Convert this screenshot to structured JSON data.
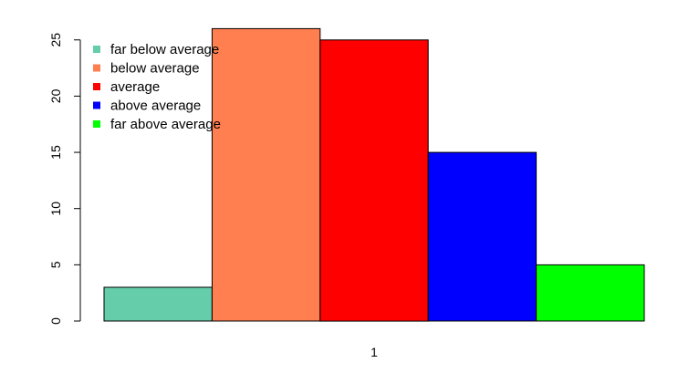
{
  "chart_data": {
    "type": "bar",
    "layout": "side-by-side bars in a single group",
    "group_label": "1",
    "categories": [
      "far below average",
      "below average",
      "average",
      "above average",
      "far above average"
    ],
    "values": [
      3,
      26,
      25,
      15,
      5
    ],
    "colors": [
      "#66cdaa",
      "#ff7f50",
      "#ff0000",
      "#0000ff",
      "#00ff00"
    ],
    "yticks": [
      "0",
      "5",
      "10",
      "15",
      "20",
      "25"
    ],
    "ytick_values": [
      0,
      5,
      10,
      15,
      20,
      25
    ],
    "ylim": [
      0,
      26
    ],
    "grid": false,
    "legend": {
      "position": "top-left",
      "entries": [
        "far below average",
        "below average",
        "average",
        "above average",
        "far above average"
      ]
    }
  }
}
